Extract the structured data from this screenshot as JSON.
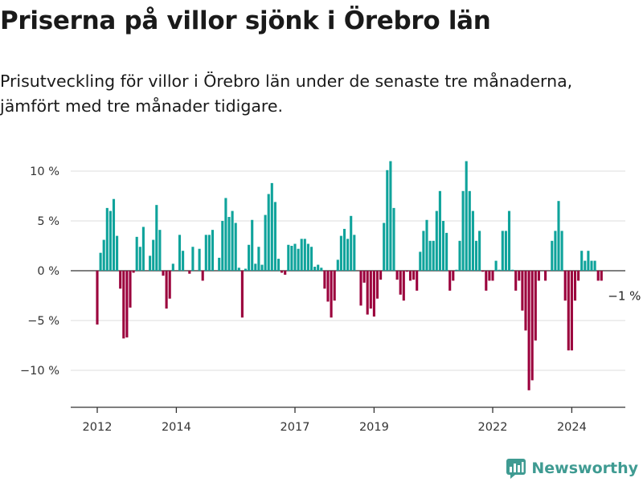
{
  "header": {
    "title": "Priserna på villor sjönk i Örebro län",
    "subtitle": "Prisutveckling för villor i Örebro län under de senaste tre månaderna, jämfört med tre månader tidigare."
  },
  "brand": {
    "name": "Newsworthy",
    "icon": "newsworthy-logo-icon",
    "color": "#3f9b92"
  },
  "colors": {
    "positive": "#0fa39b",
    "negative": "#9b003c",
    "grid": "#dddddd",
    "axis": "#333333"
  },
  "chart_data": {
    "type": "bar",
    "start": "2012-01",
    "unit": "%",
    "ylim": [
      -14,
      11.5
    ],
    "yticks": [
      {
        "value": 10,
        "label": "10 %"
      },
      {
        "value": 5,
        "label": "5 %"
      },
      {
        "value": 0,
        "label": "0 %"
      },
      {
        "value": -5,
        "label": "−5 %"
      },
      {
        "value": -10,
        "label": "−10 %"
      }
    ],
    "xticks": [
      {
        "date": "2012-01",
        "label": "2012"
      },
      {
        "date": "2014-01",
        "label": "2014"
      },
      {
        "date": "2017-01",
        "label": "2017"
      },
      {
        "date": "2019-01",
        "label": "2019"
      },
      {
        "date": "2022-01",
        "label": "2022"
      },
      {
        "date": "2024-01",
        "label": "2024"
      }
    ],
    "annotation": {
      "label": "−1 %",
      "value": -1
    },
    "values": [
      -5.4,
      1.8,
      3.1,
      6.3,
      6.0,
      7.2,
      3.5,
      -1.8,
      -6.8,
      -6.7,
      -3.7,
      -0.2,
      3.4,
      2.4,
      4.4,
      0.0,
      1.5,
      3.1,
      6.6,
      4.1,
      -0.5,
      -3.8,
      -2.8,
      0.7,
      0.0,
      3.6,
      2.0,
      0.0,
      -0.3,
      2.4,
      0.0,
      2.2,
      -1.0,
      3.6,
      3.6,
      4.1,
      0.0,
      1.3,
      5.0,
      7.3,
      5.4,
      6.0,
      4.8,
      0.3,
      -4.7,
      0.2,
      2.6,
      5.1,
      0.7,
      2.4,
      0.6,
      5.6,
      7.7,
      8.8,
      6.9,
      1.2,
      -0.2,
      -0.4,
      2.6,
      2.5,
      2.7,
      2.2,
      3.2,
      3.2,
      2.7,
      2.4,
      0.4,
      0.6,
      0.3,
      -1.8,
      -3.1,
      -4.7,
      -3.0,
      1.1,
      3.5,
      4.2,
      3.2,
      5.5,
      3.6,
      0.0,
      -3.5,
      -1.2,
      -4.4,
      -3.8,
      -4.6,
      -2.8,
      -0.9,
      4.8,
      10.1,
      11.0,
      6.3,
      -0.9,
      -2.4,
      -3.0,
      -0.1,
      -1.0,
      -0.9,
      -2.0,
      1.9,
      4.0,
      5.1,
      3.0,
      3.0,
      6.0,
      8.0,
      5.0,
      3.8,
      -2.0,
      -1.0,
      0.1,
      3.0,
      8.0,
      11.0,
      8.0,
      6.0,
      3.0,
      4.0,
      -0.1,
      -2.0,
      -1.0,
      -1.0,
      1.0,
      0.1,
      4.0,
      4.0,
      6.0,
      0.1,
      -2.0,
      -1.0,
      -4.0,
      -6.0,
      -12.0,
      -11.0,
      -7.0,
      -1.0,
      0.0,
      -1.0,
      0.0,
      3.0,
      4.0,
      7.0,
      4.0,
      -3.0,
      -8.0,
      -8.0,
      -3.0,
      -1.0,
      2.0,
      1.0,
      2.0,
      1.0,
      1.0,
      -1.0,
      -1.0
    ]
  }
}
